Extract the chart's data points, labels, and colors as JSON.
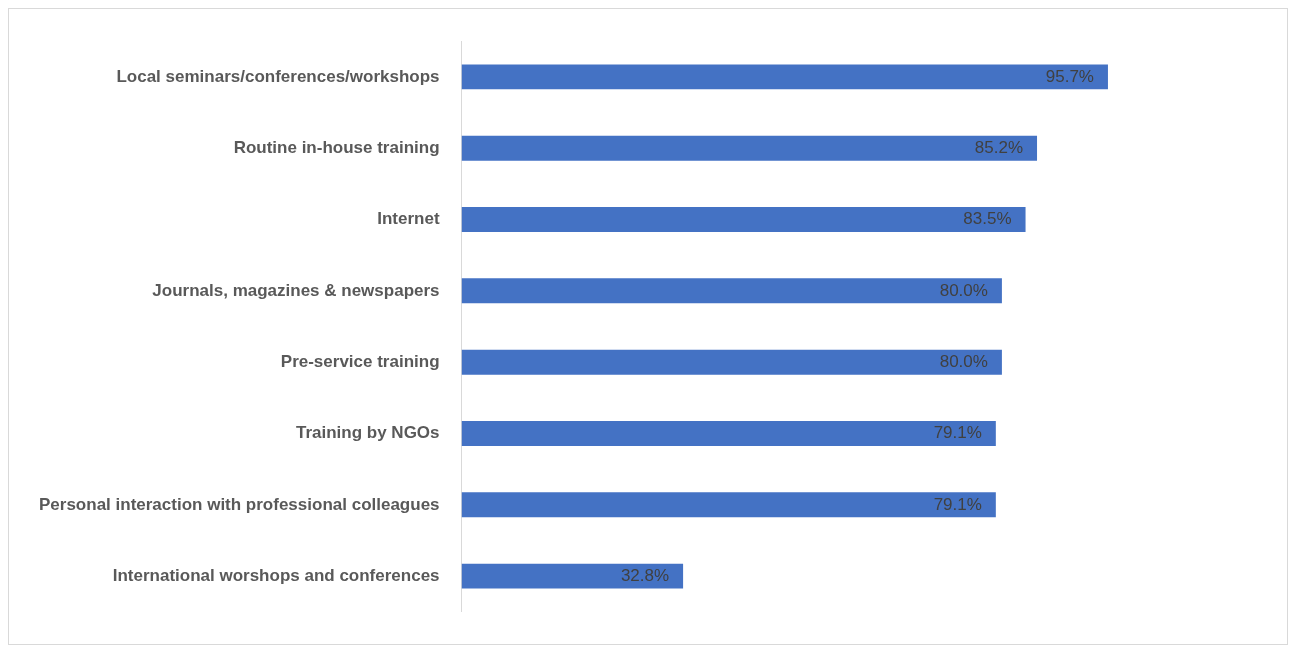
{
  "chart_data": {
    "type": "bar",
    "orientation": "horizontal",
    "categories": [
      "Local seminars/conferences/workshops",
      "Routine in-house training",
      "Internet",
      "Journals, magazines & newspapers",
      "Pre-service training",
      "Training by NGOs",
      "Personal interaction with professional colleagues",
      "International worshops and conferences"
    ],
    "values": [
      95.7,
      85.2,
      83.5,
      80.0,
      80.0,
      79.1,
      79.1,
      32.8
    ],
    "value_labels": [
      "95.7%",
      "85.2%",
      "83.5%",
      "80.0%",
      "80.0%",
      "79.1%",
      "79.1%",
      "32.8%"
    ],
    "color": "#4472c4",
    "legend": false
  }
}
